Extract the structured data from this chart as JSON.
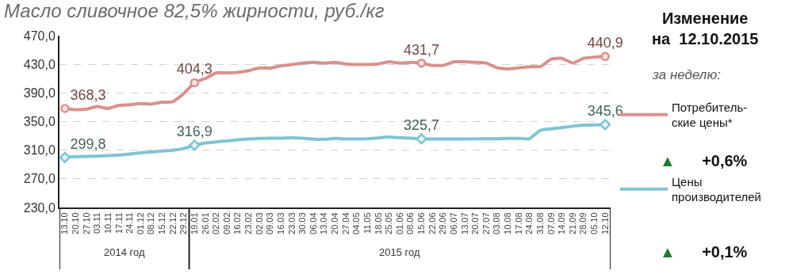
{
  "chart_data": {
    "type": "line",
    "title": "Масло сливочное 82,5% жирности, руб./кг",
    "categories": [
      "13.10",
      "20.10",
      "27.10",
      "03.11",
      "10.11",
      "17.11",
      "24.11",
      "01.12",
      "08.12",
      "15.12",
      "22.12",
      "29.12",
      "19.01",
      "26.01",
      "02.02",
      "09.02",
      "16.02",
      "23.02",
      "02.03",
      "09.03",
      "16.03",
      "23.03",
      "30.03",
      "06.04",
      "13.04",
      "20.04",
      "27.04",
      "04.05",
      "11.05",
      "18.05",
      "25.05",
      "01.06",
      "08.06",
      "15.06",
      "22.06",
      "29.06",
      "06.07",
      "13.07",
      "20.07",
      "27.07",
      "03.08",
      "10.08",
      "17.08",
      "24.08",
      "31.08",
      "07.09",
      "14.09",
      "21.09",
      "28.09",
      "05.10",
      "12.10"
    ],
    "series": [
      {
        "name": "Потребитель-\nские цены*",
        "color": "#d9918c",
        "values": [
          368.3,
          366.6,
          367.4,
          370.9,
          368.3,
          372.6,
          373.5,
          375.2,
          374.4,
          377,
          377.8,
          389,
          404.3,
          410.2,
          418,
          418,
          418.7,
          421,
          425,
          424.6,
          427.7,
          429.6,
          431.6,
          432.8,
          431.6,
          432.8,
          430.4,
          429.6,
          429.6,
          430.4,
          433.5,
          431.6,
          432.8,
          431.7,
          428.4,
          428.4,
          433.4,
          433.4,
          432.7,
          431.7,
          425.1,
          423.5,
          425.1,
          426.7,
          426.7,
          437.3,
          438.3,
          431.7,
          438.3,
          440,
          440.9
        ]
      },
      {
        "name": "Цены\nпроизводителей",
        "color": "#7fc4d4",
        "values": [
          299.8,
          301,
          301.3,
          301.7,
          302.5,
          303.2,
          304.7,
          306.3,
          307.4,
          308.9,
          310,
          312.3,
          316.9,
          320,
          321.5,
          323,
          324.5,
          325.6,
          326.4,
          326.8,
          326.8,
          327.2,
          326.8,
          325.3,
          325.3,
          326.4,
          325.7,
          325.7,
          326,
          327.2,
          328.3,
          327.5,
          326.8,
          325.7,
          325.7,
          325.7,
          325.7,
          325.7,
          325.7,
          326,
          326,
          326.4,
          326.4,
          326,
          337.8,
          339.7,
          341.6,
          343.5,
          345,
          345.4,
          345.6
        ]
      },
      {
        "type": "scatter",
        "color": "#d9918c",
        "marker": "circle",
        "x": [
          "13.10",
          "19.01",
          "15.06",
          "12.10"
        ],
        "values": [
          368.3,
          404.3,
          431.7,
          440.9
        ],
        "value_labels": [
          "368,3",
          "404,3",
          "431,7",
          "440,9"
        ]
      },
      {
        "type": "scatter",
        "color": "#7fc4d4",
        "marker": "diamond",
        "x": [
          "13.10",
          "19.01",
          "15.06",
          "12.10"
        ],
        "values": [
          299.8,
          316.9,
          325.7,
          345.6
        ],
        "value_labels": [
          "299,8",
          "316,9",
          "325,7",
          "345,6"
        ]
      }
    ],
    "ylim": [
      230,
      470
    ],
    "yticks": [
      {
        "value": 230,
        "label": "230,0"
      },
      {
        "value": 270,
        "label": "270,0"
      },
      {
        "value": 310,
        "label": "310,0"
      },
      {
        "value": 350,
        "label": "350,0"
      },
      {
        "value": 390,
        "label": "390,0"
      },
      {
        "value": 430,
        "label": "430,0"
      },
      {
        "value": 470,
        "label": "470,0"
      }
    ],
    "grid": "y",
    "legend": "right",
    "annotations": [
      "2014 год",
      "2015 год",
      "Изменение\nна  12.10.2015",
      "за неделю:",
      "▲ +0,6%",
      "▲ +0,1%"
    ]
  }
}
